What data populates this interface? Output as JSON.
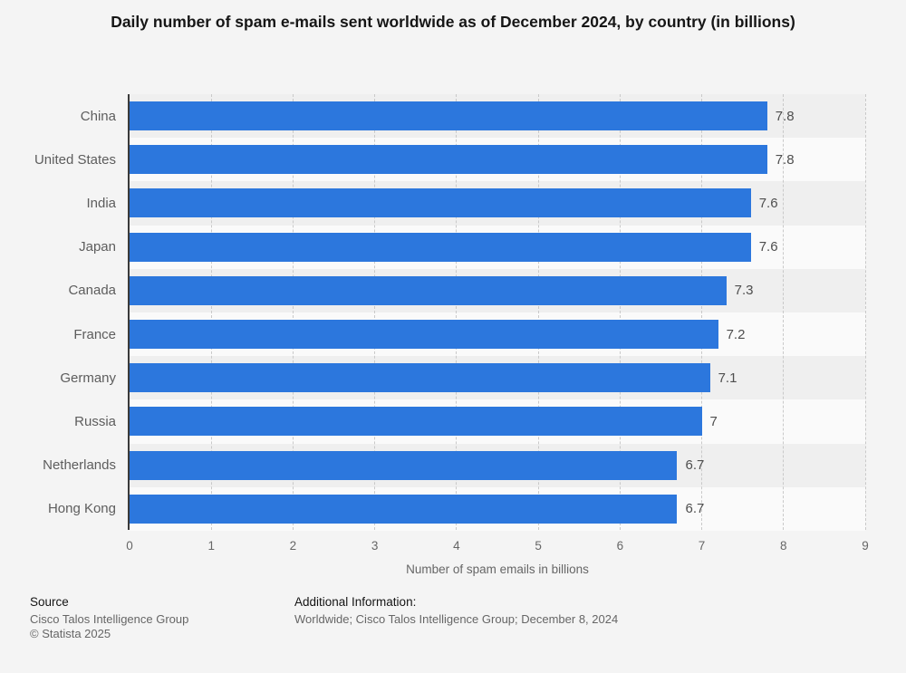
{
  "title": "Daily number of spam e-mails sent worldwide as of December 2024, by country (in billions)",
  "chart_data": {
    "type": "bar",
    "orientation": "horizontal",
    "title": "Daily number of spam e-mails sent worldwide as of December 2024, by country (in billions)",
    "categories": [
      "China",
      "United States",
      "India",
      "Japan",
      "Canada",
      "France",
      "Germany",
      "Russia",
      "Netherlands",
      "Hong Kong"
    ],
    "values": [
      7.8,
      7.8,
      7.6,
      7.6,
      7.3,
      7.2,
      7.1,
      7,
      6.7,
      6.7
    ],
    "value_labels": [
      "7.8",
      "7.8",
      "7.6",
      "7.6",
      "7.3",
      "7.2",
      "7.1",
      "7",
      "6.7",
      "6.7"
    ],
    "xlabel": "Number of spam emails in billions",
    "ylabel": "",
    "xlim": [
      0,
      9
    ],
    "xticks": [
      "0",
      "1",
      "2",
      "3",
      "4",
      "5",
      "6",
      "7",
      "8",
      "9"
    ],
    "grid": "vertical-dashed",
    "legend": false
  },
  "colors": {
    "bar": "#2c77dd",
    "page_bg": "#f4f4f4",
    "stripe_odd": "#efefef",
    "stripe_even": "#fafafa",
    "axis": "#3a3a3a",
    "gridline": "#c9c9c9"
  },
  "footer": {
    "source_label": "Source",
    "source_lines": [
      "Cisco Talos Intelligence Group",
      "© Statista 2025"
    ],
    "additional_label": "Additional Information:",
    "additional_text": "Worldwide; Cisco Talos Intelligence Group; December 8, 2024"
  }
}
